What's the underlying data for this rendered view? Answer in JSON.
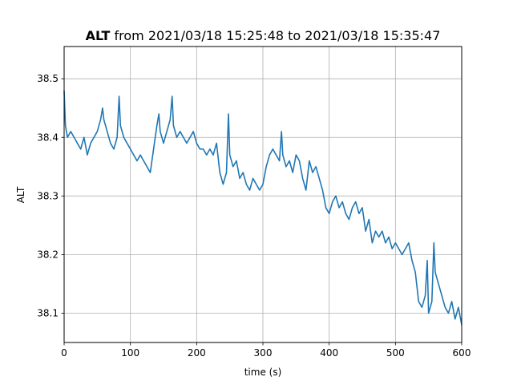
{
  "chart_data": {
    "type": "line",
    "title_bold": "ALT",
    "title_rest": " from 2021/03/18 15:25:48 to 2021/03/18 15:35:47",
    "xlabel": "time (s)",
    "ylabel": "ALT",
    "xlim": [
      0,
      600
    ],
    "ylim": [
      38.05,
      38.555
    ],
    "xticks": [
      0,
      100,
      200,
      300,
      400,
      500,
      600
    ],
    "xtick_labels": [
      "0",
      "100",
      "200",
      "300",
      "400",
      "500",
      "600"
    ],
    "yticks": [
      38.1,
      38.2,
      38.3,
      38.4,
      38.5
    ],
    "ytick_labels": [
      "38.1",
      "38.2",
      "38.3",
      "38.4",
      "38.5"
    ],
    "grid": true,
    "line_color": "#1f77b4",
    "series": [
      {
        "x": [
          0,
          2,
          5,
          10,
          15,
          20,
          25,
          30,
          35,
          40,
          45,
          50,
          55,
          58,
          60,
          65,
          70,
          75,
          80,
          83,
          85,
          90,
          95,
          100,
          105,
          110,
          115,
          120,
          125,
          130,
          135,
          140,
          143,
          145,
          150,
          155,
          160,
          163,
          165,
          170,
          175,
          180,
          185,
          190,
          195,
          200,
          205,
          210,
          215,
          220,
          225,
          230,
          235,
          240,
          245,
          248,
          250,
          255,
          260,
          265,
          270,
          275,
          280,
          285,
          290,
          295,
          300,
          305,
          310,
          315,
          320,
          325,
          328,
          330,
          335,
          340,
          345,
          350,
          355,
          360,
          365,
          370,
          375,
          380,
          385,
          390,
          395,
          400,
          405,
          410,
          415,
          420,
          425,
          430,
          435,
          440,
          445,
          450,
          455,
          460,
          465,
          470,
          475,
          480,
          485,
          490,
          495,
          500,
          505,
          510,
          515,
          520,
          525,
          530,
          535,
          540,
          545,
          548,
          550,
          555,
          558,
          560,
          565,
          570,
          575,
          580,
          585,
          590,
          595,
          600
        ],
        "y": [
          38.48,
          38.42,
          38.4,
          38.41,
          38.4,
          38.39,
          38.38,
          38.4,
          38.37,
          38.39,
          38.4,
          38.41,
          38.43,
          38.45,
          38.43,
          38.41,
          38.39,
          38.38,
          38.4,
          38.47,
          38.42,
          38.4,
          38.39,
          38.38,
          38.37,
          38.36,
          38.37,
          38.36,
          38.35,
          38.34,
          38.38,
          38.42,
          38.44,
          38.41,
          38.39,
          38.41,
          38.43,
          38.47,
          38.42,
          38.4,
          38.41,
          38.4,
          38.39,
          38.4,
          38.41,
          38.39,
          38.38,
          38.38,
          38.37,
          38.38,
          38.37,
          38.39,
          38.34,
          38.32,
          38.34,
          38.44,
          38.37,
          38.35,
          38.36,
          38.33,
          38.34,
          38.32,
          38.31,
          38.33,
          38.32,
          38.31,
          38.32,
          38.35,
          38.37,
          38.38,
          38.37,
          38.36,
          38.41,
          38.37,
          38.35,
          38.36,
          38.34,
          38.37,
          38.36,
          38.33,
          38.31,
          38.36,
          38.34,
          38.35,
          38.33,
          38.31,
          38.28,
          38.27,
          38.29,
          38.3,
          38.28,
          38.29,
          38.27,
          38.26,
          38.28,
          38.29,
          38.27,
          38.28,
          38.24,
          38.26,
          38.22,
          38.24,
          38.23,
          38.24,
          38.22,
          38.23,
          38.21,
          38.22,
          38.21,
          38.2,
          38.21,
          38.22,
          38.19,
          38.17,
          38.12,
          38.11,
          38.13,
          38.19,
          38.1,
          38.12,
          38.22,
          38.17,
          38.15,
          38.13,
          38.11,
          38.1,
          38.12,
          38.09,
          38.11,
          38.08
        ]
      }
    ]
  }
}
